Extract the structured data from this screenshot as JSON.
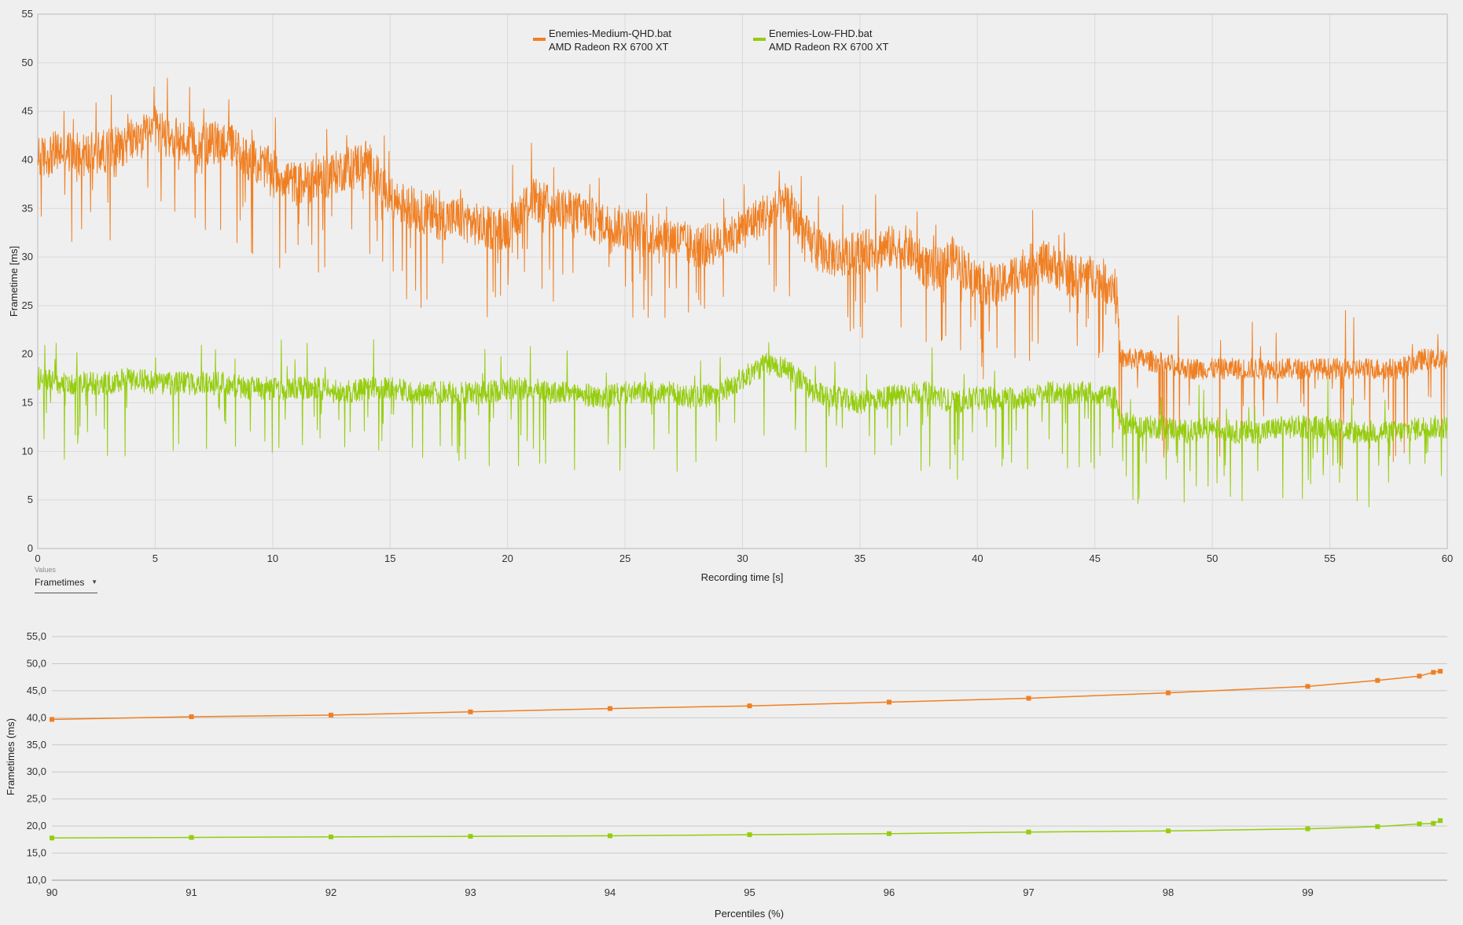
{
  "colors": {
    "medium_qhd": "#f07f22",
    "low_fhd": "#95cd0e"
  },
  "legend": [
    {
      "name": "Enemies-Medium-QHD.bat",
      "gpu": "AMD Radeon RX 6700 XT"
    },
    {
      "name": "Enemies-Low-FHD.bat",
      "gpu": "AMD Radeon RX 6700 XT"
    }
  ],
  "values_selector": {
    "caption": "Values",
    "selected": "Frametimes"
  },
  "chart_data": [
    {
      "type": "line",
      "title": "",
      "xlabel": "Recording time [s]",
      "ylabel": "Frametime [ms]",
      "xlim": [
        0,
        60
      ],
      "ylim": [
        0,
        55
      ],
      "x_ticks": [
        "0",
        "5",
        "10",
        "15",
        "20",
        "25",
        "30",
        "35",
        "40",
        "45",
        "50",
        "55",
        "60"
      ],
      "y_ticks": [
        "0",
        "5",
        "10",
        "15",
        "20",
        "25",
        "30",
        "35",
        "40",
        "45",
        "50",
        "55"
      ],
      "grid": true,
      "legend_position": "top-center",
      "series": [
        {
          "name": "Enemies-Medium-QHD.bat",
          "color": "#f07f22",
          "x": [
            0,
            1,
            2,
            3,
            4,
            5,
            6,
            7,
            8,
            9,
            10,
            11,
            12,
            13,
            14,
            15,
            16,
            17,
            18,
            19,
            20,
            21,
            22,
            23,
            24,
            25,
            26,
            27,
            28,
            29,
            30,
            31,
            32,
            33,
            34,
            35,
            36,
            37,
            38,
            39,
            40,
            41,
            42,
            43,
            44,
            45,
            45.9,
            46.1,
            47,
            48,
            49,
            50,
            51,
            52,
            53,
            54,
            55,
            56,
            57,
            58,
            59,
            60
          ],
          "y": [
            40,
            41,
            40.5,
            41,
            42,
            43,
            42,
            41.5,
            42,
            40,
            39,
            37.5,
            38,
            39,
            40,
            36,
            35,
            34,
            34,
            33,
            33,
            36,
            35,
            34.5,
            33.5,
            33,
            32.5,
            32,
            31,
            31.5,
            33,
            34.5,
            35,
            31,
            30,
            30.5,
            31,
            31,
            28.5,
            30,
            27.5,
            27,
            29,
            29.5,
            28,
            28,
            27,
            19.5,
            19.5,
            19,
            18.5,
            18.5,
            18.5,
            18.5,
            18.5,
            18.5,
            18.5,
            18.5,
            18.5,
            18.5,
            19.5,
            19.5
          ]
        },
        {
          "name": "Enemies-Low-FHD.bat",
          "color": "#95cd0e",
          "x": [
            0,
            1,
            2,
            3,
            4,
            5,
            6,
            7,
            8,
            9,
            10,
            11,
            12,
            13,
            14,
            15,
            16,
            17,
            18,
            19,
            20,
            21,
            22,
            23,
            24,
            25,
            26,
            27,
            28,
            29,
            30,
            31,
            32,
            33,
            34,
            35,
            36,
            37,
            38,
            39,
            40,
            41,
            42,
            43,
            44,
            45,
            45.9,
            46.1,
            47,
            48,
            49,
            50,
            51,
            52,
            53,
            54,
            55,
            56,
            57,
            58,
            59,
            60
          ],
          "y": [
            17.5,
            17,
            17,
            17,
            17.5,
            17,
            17,
            17,
            17,
            16.5,
            16.5,
            16.5,
            16.5,
            16,
            16.5,
            16.5,
            16,
            16,
            16,
            16,
            16.5,
            16.5,
            16,
            16,
            15.5,
            16,
            16,
            16,
            15.5,
            16,
            17.5,
            19,
            18.5,
            16,
            15.5,
            15,
            15.5,
            16,
            16,
            15,
            15.5,
            15.5,
            15.5,
            16,
            16,
            16,
            15.5,
            13,
            12.5,
            12.5,
            12,
            12.5,
            12,
            12,
            12.5,
            12.5,
            12.5,
            12,
            12,
            12,
            12.5,
            12.5
          ]
        }
      ]
    },
    {
      "type": "line",
      "title": "",
      "xlabel": "Percentiles (%)",
      "ylabel": "Frametimes (ms)",
      "xlim": [
        90,
        100
      ],
      "ylim": [
        10,
        55
      ],
      "x_ticks": [
        "90",
        "91",
        "92",
        "93",
        "94",
        "95",
        "96",
        "97",
        "98",
        "99"
      ],
      "y_ticks": [
        "10,0",
        "15,0",
        "20,0",
        "25,0",
        "30,0",
        "35,0",
        "40,0",
        "45,0",
        "50,0",
        "55,0"
      ],
      "grid": true,
      "series": [
        {
          "name": "Enemies-Medium-QHD.bat",
          "color": "#f07f22",
          "x": [
            90,
            91,
            92,
            93,
            94,
            95,
            96,
            97,
            98,
            99,
            99.5,
            99.8,
            99.9,
            99.95
          ],
          "y": [
            39.7,
            40.2,
            40.5,
            41.1,
            41.7,
            42.2,
            42.9,
            43.6,
            44.6,
            45.8,
            46.9,
            47.7,
            48.4,
            48.6
          ]
        },
        {
          "name": "Enemies-Low-FHD.bat",
          "color": "#95cd0e",
          "x": [
            90,
            91,
            92,
            93,
            94,
            95,
            96,
            97,
            98,
            99,
            99.5,
            99.8,
            99.9,
            99.95
          ],
          "y": [
            17.8,
            17.9,
            18.0,
            18.1,
            18.2,
            18.4,
            18.6,
            18.9,
            19.1,
            19.5,
            19.9,
            20.4,
            20.5,
            21.0
          ]
        }
      ]
    }
  ]
}
